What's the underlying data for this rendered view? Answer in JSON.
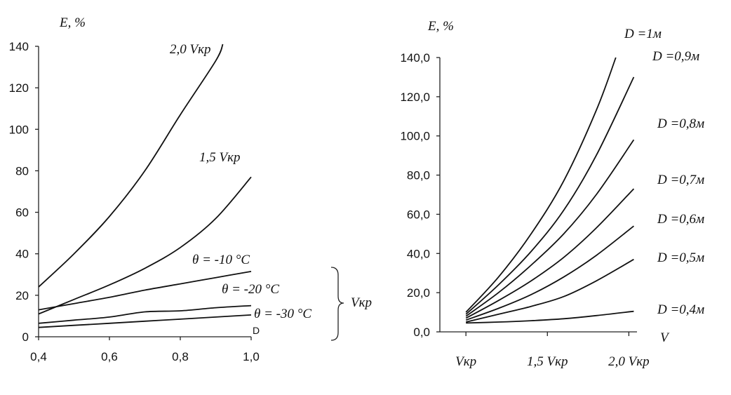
{
  "chart_data": [
    {
      "type": "line",
      "ylabel": "E, %",
      "xlabel": "",
      "xlim": [
        0.4,
        1.0
      ],
      "ylim": [
        0,
        140
      ],
      "xticks": [
        "0,4",
        "0,6",
        "0,8",
        "1,0"
      ],
      "yticks": [
        "0",
        "20",
        "40",
        "60",
        "80",
        "100",
        "120",
        "140"
      ],
      "corner_label": "D",
      "bracket_label": "Vкр",
      "series": [
        {
          "name": "2,0 Vкр",
          "x": [
            0.4,
            0.5,
            0.6,
            0.7,
            0.8,
            0.9,
            0.92
          ],
          "y": [
            24,
            40,
            58,
            80,
            107,
            133,
            141
          ]
        },
        {
          "name": "1,5 Vкр",
          "x": [
            0.4,
            0.5,
            0.6,
            0.7,
            0.8,
            0.9,
            1.0
          ],
          "y": [
            11,
            18,
            25,
            33,
            43,
            57,
            77
          ]
        },
        {
          "name": "θ = -10 °C",
          "x": [
            0.4,
            0.5,
            0.6,
            0.7,
            0.8,
            0.9,
            1.0
          ],
          "y": [
            13,
            16,
            19,
            22.5,
            25.5,
            28.5,
            31.5
          ]
        },
        {
          "name": "θ = -20 °C",
          "x": [
            0.4,
            0.5,
            0.6,
            0.7,
            0.8,
            0.9,
            1.0
          ],
          "y": [
            6.5,
            8,
            9.5,
            12,
            12.5,
            14,
            15
          ]
        },
        {
          "name": "θ = -30 °C",
          "x": [
            0.4,
            0.5,
            0.6,
            0.7,
            0.8,
            0.9,
            1.0
          ],
          "y": [
            4.5,
            5.5,
            6.5,
            7.5,
            8.5,
            9.5,
            10.5
          ]
        }
      ]
    },
    {
      "type": "line",
      "ylabel": "E, %",
      "xlabel": "V",
      "xlim": [
        0.84,
        2.05
      ],
      "ylim": [
        0,
        140
      ],
      "xticks": [
        {
          "value": 1.0,
          "label": "Vкр"
        },
        {
          "value": 1.5,
          "label": "1,5 Vкр"
        },
        {
          "value": 2.0,
          "label": "2,0 Vкр"
        }
      ],
      "yticks": [
        "0,0",
        "20,0",
        "40,0",
        "60,0",
        "80,0",
        "100,0",
        "120,0",
        "140,0"
      ],
      "series": [
        {
          "name": "D =1м",
          "x": [
            1.0,
            1.2,
            1.4,
            1.6,
            1.8,
            1.92
          ],
          "y": [
            10,
            28,
            50,
            77,
            113,
            140
          ]
        },
        {
          "name": "D =0,9м",
          "x": [
            1.0,
            1.2,
            1.4,
            1.6,
            1.8,
            2.03
          ],
          "y": [
            9,
            24,
            41,
            62,
            90,
            130
          ]
        },
        {
          "name": "D =0,8м",
          "x": [
            1.0,
            1.2,
            1.4,
            1.6,
            1.8,
            2.03
          ],
          "y": [
            8,
            20,
            34,
            50,
            70,
            98
          ]
        },
        {
          "name": "D =0,7м",
          "x": [
            1.0,
            1.2,
            1.4,
            1.6,
            1.8,
            2.03
          ],
          "y": [
            7,
            16,
            26,
            38,
            53,
            73
          ]
        },
        {
          "name": "D =0,6м",
          "x": [
            1.0,
            1.2,
            1.4,
            1.6,
            1.8,
            2.03
          ],
          "y": [
            6,
            12,
            19,
            28,
            39,
            54
          ]
        },
        {
          "name": "D =0,5м",
          "x": [
            1.0,
            1.2,
            1.4,
            1.6,
            1.8,
            2.03
          ],
          "y": [
            5,
            9,
            13,
            18,
            26,
            37
          ]
        },
        {
          "name": "D =0,4м",
          "x": [
            1.0,
            1.2,
            1.4,
            1.6,
            1.8,
            2.03
          ],
          "y": [
            4.5,
            5,
            5.7,
            6.7,
            8.3,
            10.5
          ]
        }
      ]
    }
  ]
}
